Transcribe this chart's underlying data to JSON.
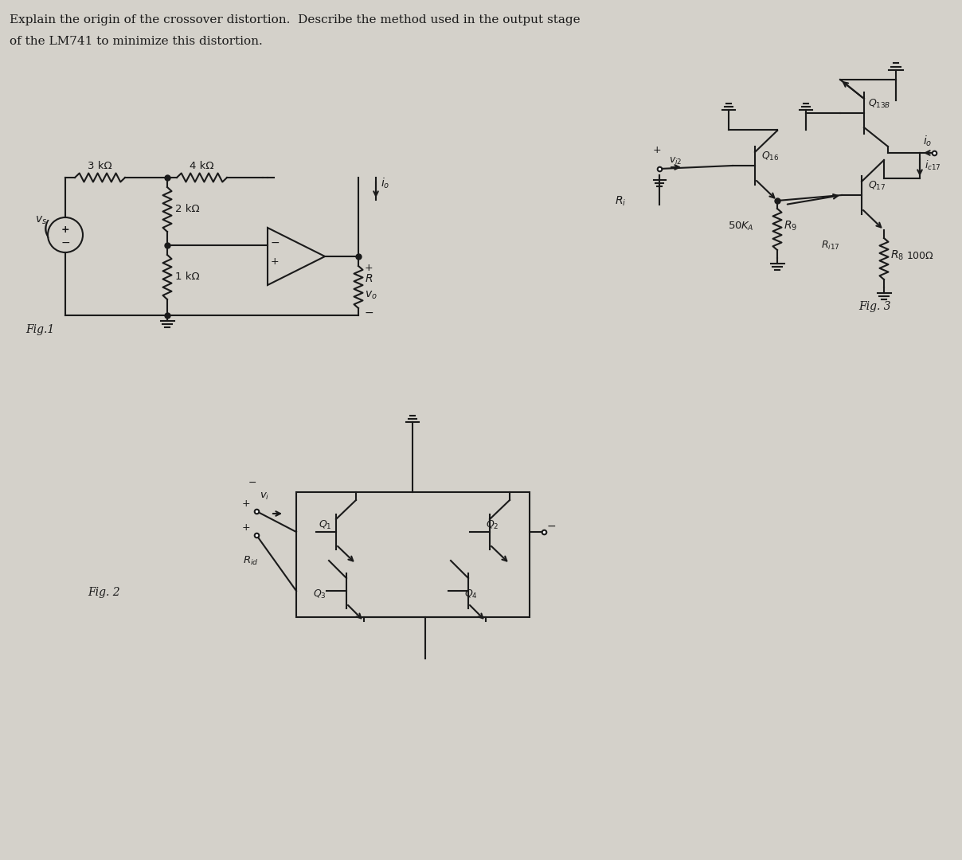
{
  "title_line1": "Explain the origin of the crossover distortion.  Describe the method used in the output stage",
  "title_line2": "of the LM741 to minimize this distortion.",
  "bg_color": "#d4d1ca",
  "text_color": "#1a1a1a",
  "fig1_label": "Fig.1",
  "fig2_label": "Fig. 2",
  "fig3_label": "Fig. 3"
}
